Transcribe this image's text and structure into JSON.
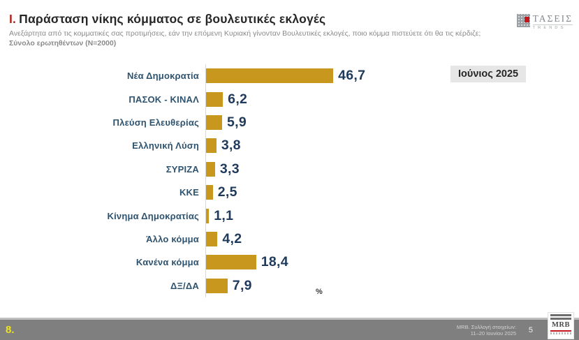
{
  "header": {
    "title_prefix": "Ι.",
    "title": "Παράσταση νίκης κόμματος σε βουλευτικές εκλογές",
    "subtitle": "Ανεξάρτητα από τις κομματικές σας προτιμήσεις, εάν την επόμενη Κυριακή γίνονταν Βουλευτικές εκλογές, ποιο κόμμα πιστεύετε ότι θα τις κέρδιζε;",
    "sample": "Σύνολο ερωτηθέντων (N=2000)",
    "brand_name": "ΤΑΣΕΙΣ",
    "brand_sub": "TRENDS"
  },
  "chart_data": {
    "type": "bar",
    "orientation": "horizontal",
    "title": "Παράσταση νίκης κόμματος σε βουλευτικές εκλογές",
    "categories": [
      "Νέα Δημοκρατία",
      "ΠΑΣΟΚ - ΚΙΝΑΛ",
      "Πλεύση Ελευθερίας",
      "Ελληνική Λύση",
      "ΣΥΡΙΖΑ",
      "ΚΚΕ",
      "Κίνημα Δημοκρατίας",
      "Άλλο κόμμα",
      "Κανένα κόμμα",
      "ΔΞ/ΔΑ"
    ],
    "values": [
      46.7,
      6.2,
      5.9,
      3.8,
      3.3,
      2.5,
      1.1,
      4.2,
      18.4,
      7.9
    ],
    "value_labels": [
      "46,7",
      "6,2",
      "5,9",
      "3,8",
      "3,3",
      "2,5",
      "1,1",
      "4,2",
      "18,4",
      "7,9"
    ],
    "xlim": [
      0,
      50
    ],
    "unit_label": "%",
    "period_label": "Ιούνιος 2025",
    "bar_color": "#c8971d",
    "label_color": "#2e536f",
    "value_color": "#1f3a5a",
    "grid": false,
    "legend": "none"
  },
  "footer": {
    "slide_number": "8.",
    "source_line1": "MRB. Συλλογή στοιχείων:",
    "source_line2": "11–20 Ιουνίου 2025",
    "page_number": "5",
    "logo_text": "MRB"
  }
}
